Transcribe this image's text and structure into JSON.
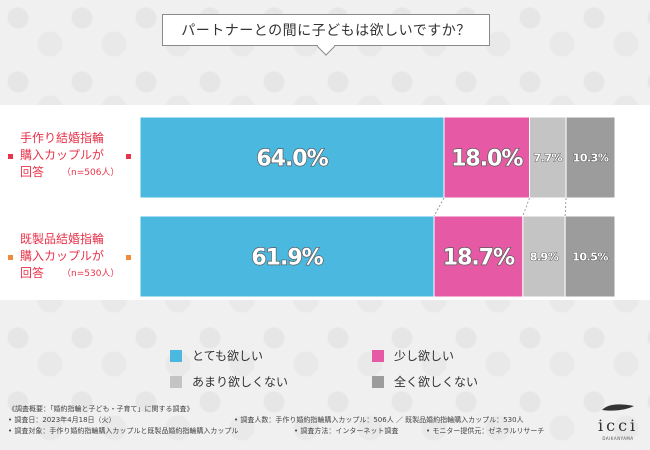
{
  "title": "パートナーとの間に子どもは欲しいですか？",
  "groups": [
    {
      "line1": "手作り結婚指輪",
      "line2": "購入カップルが",
      "line3": "回答",
      "n": "（n=506人）"
    },
    {
      "line1": "既製品結婚指輪",
      "line2": "購入カップルが",
      "line3": "回答",
      "n": "（n=530人）"
    }
  ],
  "legend": [
    "とても欲しい",
    "少し欲しい",
    "あまり欲しくない",
    "全く欲しくない"
  ],
  "colors": {
    "accent": "#e8334a",
    "bg": "#f0f0f0"
  },
  "chart_data": {
    "type": "bar",
    "orientation": "horizontal-stacked-100",
    "title": "パートナーとの間に子どもは欲しいですか？",
    "categories": [
      "手作り結婚指輪購入カップルが回答（n=506人）",
      "既製品結婚指輪購入カップルが回答（n=530人）"
    ],
    "series": [
      {
        "name": "とても欲しい",
        "values": [
          64.0,
          61.9
        ],
        "labels": [
          "64.0%",
          "61.9%"
        ],
        "color": "#4bb8df"
      },
      {
        "name": "少し欲しい",
        "values": [
          18.0,
          18.7
        ],
        "labels": [
          "18.0%",
          "18.7%"
        ],
        "color": "#e65aa5"
      },
      {
        "name": "あまり欲しくない",
        "values": [
          7.7,
          8.9
        ],
        "labels": [
          "7.7%",
          "8.9%"
        ],
        "color": "#c4c4c4"
      },
      {
        "name": "全く欲しくない",
        "values": [
          10.3,
          10.5
        ],
        "labels": [
          "10.3%",
          "10.5%"
        ],
        "color": "#9c9c9c"
      }
    ],
    "xlim": [
      0,
      100
    ],
    "legend_position": "bottom"
  },
  "notes": {
    "line1": "《調査概要：「婚約指輪と子ども・子育て」に関する調査》",
    "line2a": "• 調査日：2023年4月18日（火）",
    "line2b": "• 調査人数：手作り婚約指輪購入カップル：506人 ／ 既製品婚約指輪購入カップル：530人",
    "line3a": "• 調査対象：手作り婚約指輪購入カップルと既製品婚約指輪購入カップル",
    "line3b": "• 調査方法：インターネット調査",
    "line3c": "• モニター提供元：ゼネラルリサーチ"
  },
  "logo": {
    "name": "icci",
    "sub": "DAIKANYAMA"
  }
}
